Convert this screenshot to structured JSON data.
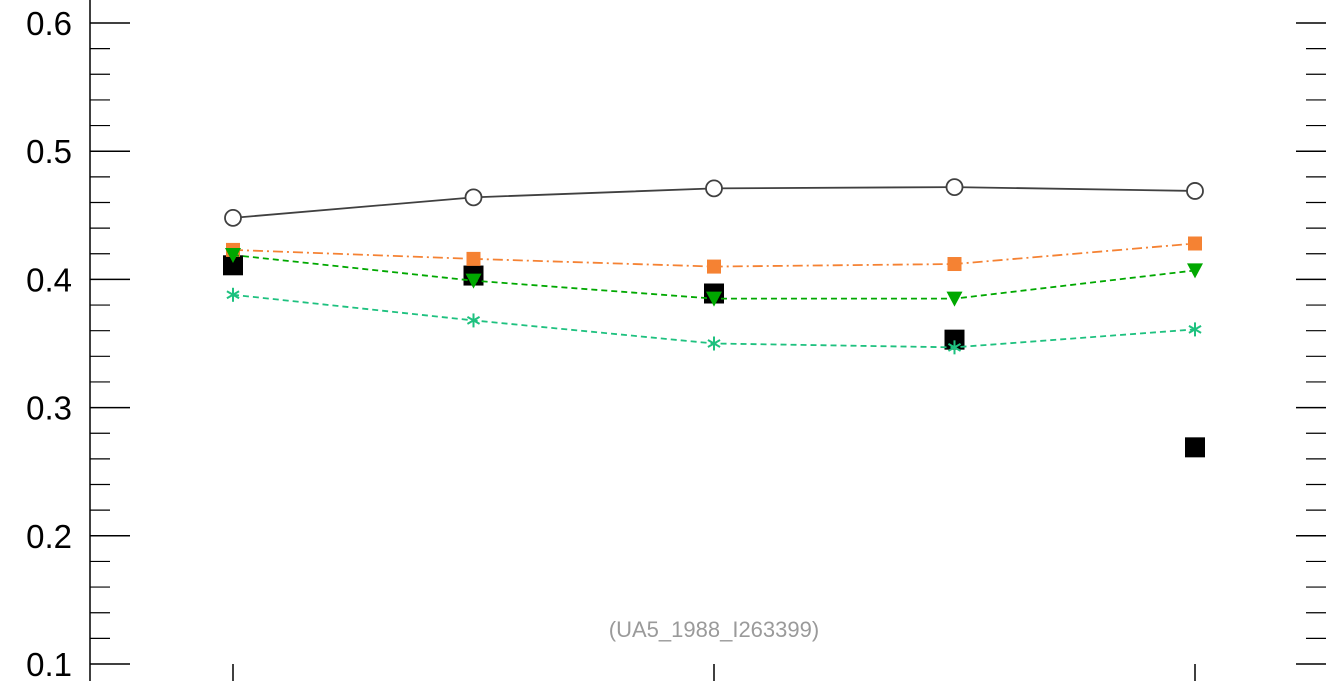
{
  "chart_data": {
    "type": "line",
    "title": "",
    "xlabel": "",
    "ylabel": "",
    "xlim": [
      0.5,
      5.5
    ],
    "ylim": [
      0.1,
      0.6
    ],
    "x": [
      1,
      2,
      3,
      4,
      5
    ],
    "y_ticks": [
      0.1,
      0.2,
      0.3,
      0.4,
      0.5,
      0.6
    ],
    "y_tick_labels": [
      "0.1",
      "0.2",
      "0.3",
      "0.4",
      "0.5",
      "0.6"
    ],
    "x_major_ticks": [
      1,
      3,
      5
    ],
    "grid": false,
    "legend": "none",
    "annotation": "(UA5_1988_I263399)",
    "series": [
      {
        "color": "#404040",
        "marker": "open-circle",
        "line": "solid",
        "values": [
          0.448,
          0.464,
          0.471,
          0.472,
          0.469
        ]
      },
      {
        "color": "#f58233",
        "marker": "square",
        "line": "dash-dot",
        "values": [
          0.423,
          0.416,
          0.41,
          0.412,
          0.428
        ]
      },
      {
        "color": "#00a800",
        "marker": "triangle-down",
        "line": "dashed",
        "values": [
          0.419,
          0.399,
          0.385,
          0.385,
          0.407
        ]
      },
      {
        "color": "#1ec17f",
        "marker": "asterisk",
        "line": "dashed",
        "values": [
          0.388,
          0.368,
          0.35,
          0.347,
          0.361
        ]
      },
      {
        "color": "#000000",
        "marker": "filled-square",
        "line": "none",
        "values": [
          0.411,
          0.403,
          0.389,
          0.353,
          0.269
        ]
      }
    ]
  }
}
